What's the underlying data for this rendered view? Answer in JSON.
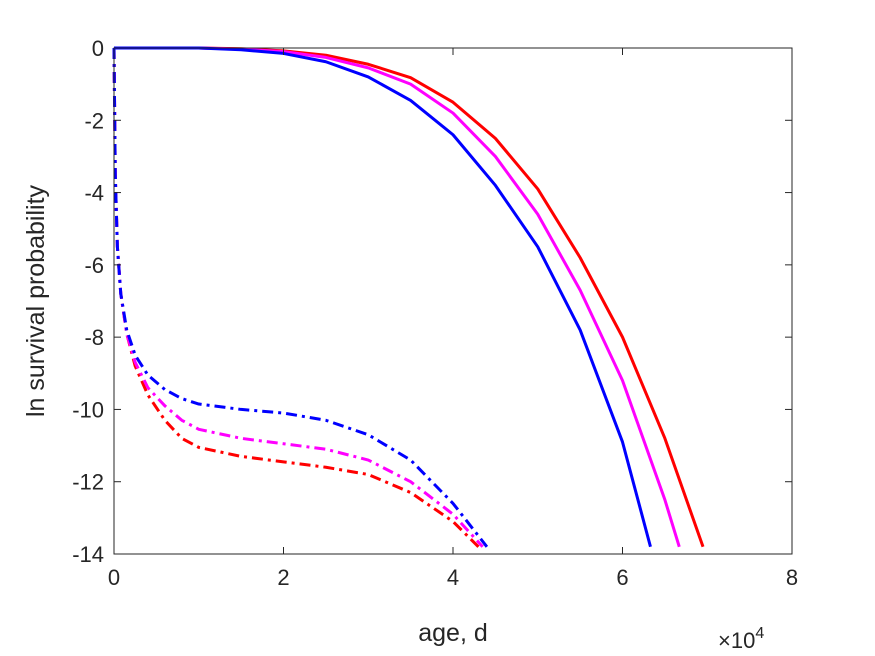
{
  "chart_data": {
    "type": "line",
    "title": "",
    "xlabel": "age, d",
    "ylabel": "ln survival probability",
    "x_multiplier": {
      "base": "×10",
      "exponent": "4"
    },
    "xlim": [
      0,
      80000
    ],
    "ylim": [
      -14,
      0
    ],
    "x_ticks": [
      0,
      20000,
      40000,
      60000,
      80000
    ],
    "x_tick_labels": [
      "0",
      "2",
      "4",
      "6",
      "8"
    ],
    "y_ticks": [
      0,
      -2,
      -4,
      -6,
      -8,
      -10,
      -12,
      -14
    ],
    "y_tick_labels": [
      "0",
      "-2",
      "-4",
      "-6",
      "-8",
      "-10",
      "-12",
      "-14"
    ],
    "grid": false,
    "legend": "none",
    "series": [
      {
        "color": "#ff0000",
        "style": "solid",
        "points": [
          [
            0,
            0
          ],
          [
            10000,
            0
          ],
          [
            15000,
            -0.02
          ],
          [
            20000,
            -0.08
          ],
          [
            25000,
            -0.2
          ],
          [
            30000,
            -0.45
          ],
          [
            35000,
            -0.82
          ],
          [
            40000,
            -1.5
          ],
          [
            45000,
            -2.5
          ],
          [
            50000,
            -3.9
          ],
          [
            55000,
            -5.8
          ],
          [
            60000,
            -8.0
          ],
          [
            65000,
            -10.8
          ],
          [
            69500,
            -13.8
          ]
        ]
      },
      {
        "color": "#ff00ff",
        "style": "solid",
        "points": [
          [
            0,
            0
          ],
          [
            10000,
            0
          ],
          [
            15000,
            -0.03
          ],
          [
            20000,
            -0.1
          ],
          [
            25000,
            -0.26
          ],
          [
            30000,
            -0.55
          ],
          [
            35000,
            -1.0
          ],
          [
            40000,
            -1.8
          ],
          [
            45000,
            -3.0
          ],
          [
            50000,
            -4.6
          ],
          [
            55000,
            -6.7
          ],
          [
            60000,
            -9.2
          ],
          [
            65000,
            -12.5
          ],
          [
            66700,
            -13.8
          ]
        ]
      },
      {
        "color": "#0000ff",
        "style": "solid",
        "points": [
          [
            0,
            0
          ],
          [
            10000,
            0
          ],
          [
            15000,
            -0.05
          ],
          [
            20000,
            -0.15
          ],
          [
            25000,
            -0.38
          ],
          [
            30000,
            -0.8
          ],
          [
            35000,
            -1.45
          ],
          [
            40000,
            -2.4
          ],
          [
            45000,
            -3.8
          ],
          [
            50000,
            -5.5
          ],
          [
            55000,
            -7.8
          ],
          [
            60000,
            -10.9
          ],
          [
            63300,
            -13.8
          ]
        ]
      },
      {
        "color": "#ff0000",
        "style": "dash-dot",
        "points": [
          [
            0,
            0
          ],
          [
            150,
            -3.5
          ],
          [
            400,
            -5.5
          ],
          [
            800,
            -6.8
          ],
          [
            1500,
            -7.9
          ],
          [
            2500,
            -8.8
          ],
          [
            4000,
            -9.6
          ],
          [
            6000,
            -10.3
          ],
          [
            8000,
            -10.8
          ],
          [
            10000,
            -11.05
          ],
          [
            15000,
            -11.3
          ],
          [
            20000,
            -11.45
          ],
          [
            25000,
            -11.6
          ],
          [
            30000,
            -11.8
          ],
          [
            35000,
            -12.3
          ],
          [
            40000,
            -13.1
          ],
          [
            43000,
            -13.8
          ]
        ]
      },
      {
        "color": "#ff00ff",
        "style": "dash-dot",
        "points": [
          [
            0,
            0
          ],
          [
            150,
            -3.5
          ],
          [
            400,
            -5.5
          ],
          [
            800,
            -6.8
          ],
          [
            1500,
            -7.9
          ],
          [
            2500,
            -8.7
          ],
          [
            4000,
            -9.4
          ],
          [
            6000,
            -9.9
          ],
          [
            8000,
            -10.3
          ],
          [
            10000,
            -10.55
          ],
          [
            15000,
            -10.8
          ],
          [
            20000,
            -10.95
          ],
          [
            25000,
            -11.1
          ],
          [
            30000,
            -11.4
          ],
          [
            35000,
            -12.0
          ],
          [
            40000,
            -12.9
          ],
          [
            43500,
            -13.8
          ]
        ]
      },
      {
        "color": "#0000ff",
        "style": "dash-dot",
        "points": [
          [
            0,
            0
          ],
          [
            150,
            -3.5
          ],
          [
            400,
            -5.5
          ],
          [
            800,
            -6.8
          ],
          [
            1500,
            -7.8
          ],
          [
            2500,
            -8.5
          ],
          [
            4000,
            -9.05
          ],
          [
            6000,
            -9.45
          ],
          [
            8000,
            -9.7
          ],
          [
            10000,
            -9.85
          ],
          [
            15000,
            -10.0
          ],
          [
            20000,
            -10.1
          ],
          [
            25000,
            -10.3
          ],
          [
            30000,
            -10.7
          ],
          [
            35000,
            -11.4
          ],
          [
            40000,
            -12.6
          ],
          [
            44000,
            -13.8
          ]
        ]
      }
    ]
  }
}
